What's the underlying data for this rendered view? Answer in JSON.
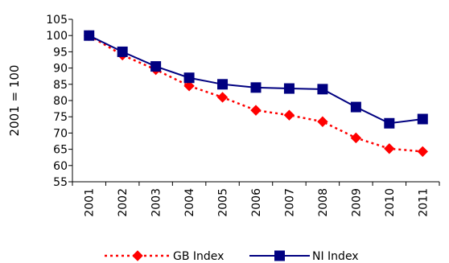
{
  "chart_data": {
    "type": "line",
    "categories": [
      "2001",
      "2002",
      "2003",
      "2004",
      "2005",
      "2006",
      "2007",
      "2008",
      "2009",
      "2010",
      "2011"
    ],
    "series": [
      {
        "name": "GB Index",
        "values": [
          100,
          94,
          89.5,
          84.5,
          81,
          77,
          75.5,
          73.5,
          68.5,
          65.2,
          64.3
        ],
        "color": "#ff0000",
        "line_style": "dotted",
        "marker": "diamond"
      },
      {
        "name": "NI Index",
        "values": [
          100,
          95,
          90.5,
          87,
          85,
          84,
          83.7,
          83.5,
          78,
          73,
          74.3
        ],
        "color": "#000080",
        "line_style": "solid",
        "marker": "square"
      }
    ],
    "ylabel": "2001 = 100",
    "xlabel": "",
    "ylim": [
      55,
      105
    ],
    "yticks": [
      55,
      60,
      65,
      70,
      75,
      80,
      85,
      90,
      95,
      100,
      105
    ],
    "grid": false,
    "legend_position": "bottom"
  }
}
